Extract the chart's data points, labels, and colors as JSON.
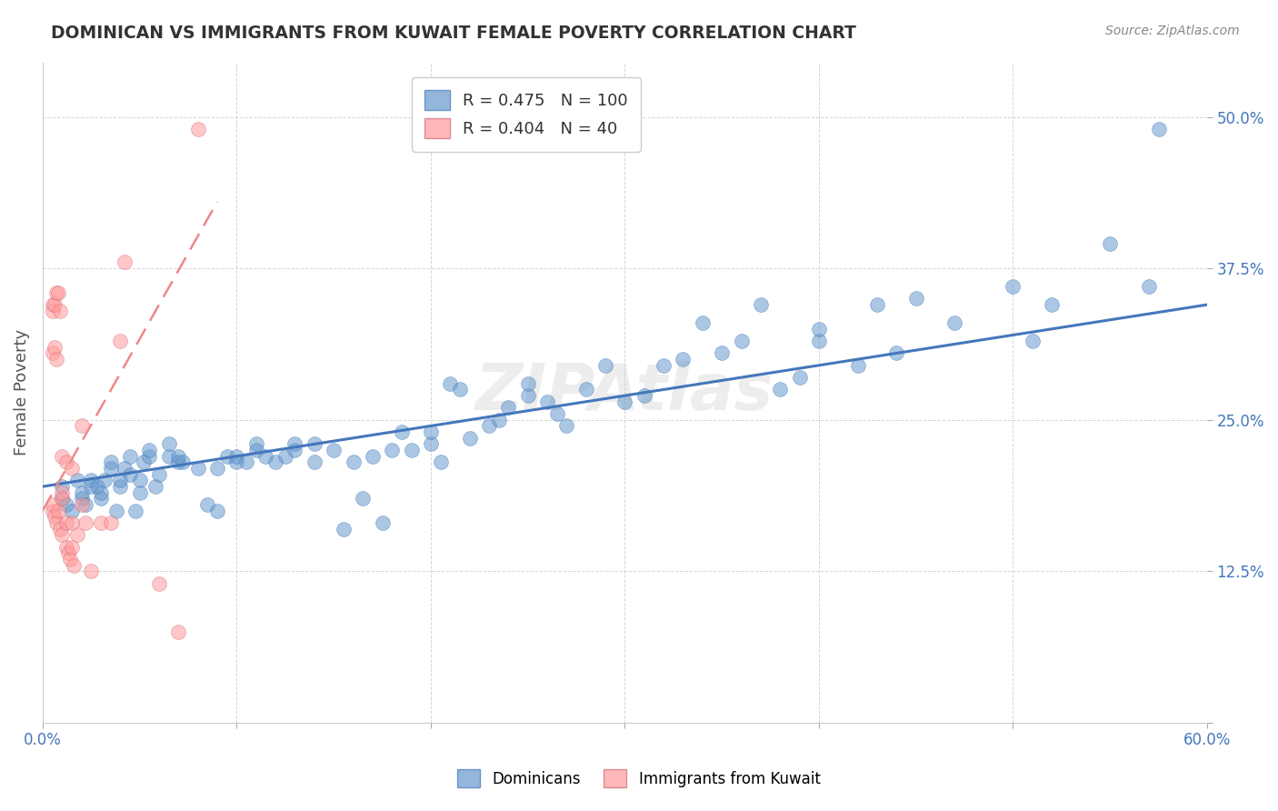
{
  "title": "DOMINICAN VS IMMIGRANTS FROM KUWAIT FEMALE POVERTY CORRELATION CHART",
  "source": "Source: ZipAtlas.com",
  "ylabel": "Female Poverty",
  "xlim": [
    0.0,
    0.6
  ],
  "ylim": [
    0.0,
    0.545
  ],
  "legend_blue_r": "0.475",
  "legend_blue_n": "100",
  "legend_pink_r": "0.404",
  "legend_pink_n": "40",
  "blue_color": "#6699CC",
  "pink_color": "#FF9999",
  "trendline_blue": "#4477BB",
  "trendline_pink": "#EE8888",
  "title_color": "#333333",
  "axis_label_color": "#4477BB",
  "watermark": "ZIPAtlas",
  "blue_scatter": [
    [
      0.01,
      0.185
    ],
    [
      0.01,
      0.195
    ],
    [
      0.012,
      0.18
    ],
    [
      0.015,
      0.175
    ],
    [
      0.018,
      0.2
    ],
    [
      0.02,
      0.185
    ],
    [
      0.02,
      0.19
    ],
    [
      0.022,
      0.18
    ],
    [
      0.025,
      0.195
    ],
    [
      0.025,
      0.2
    ],
    [
      0.028,
      0.195
    ],
    [
      0.03,
      0.185
    ],
    [
      0.03,
      0.19
    ],
    [
      0.032,
      0.2
    ],
    [
      0.035,
      0.21
    ],
    [
      0.035,
      0.215
    ],
    [
      0.038,
      0.175
    ],
    [
      0.04,
      0.195
    ],
    [
      0.04,
      0.2
    ],
    [
      0.042,
      0.21
    ],
    [
      0.045,
      0.205
    ],
    [
      0.045,
      0.22
    ],
    [
      0.048,
      0.175
    ],
    [
      0.05,
      0.19
    ],
    [
      0.05,
      0.2
    ],
    [
      0.052,
      0.215
    ],
    [
      0.055,
      0.22
    ],
    [
      0.055,
      0.225
    ],
    [
      0.058,
      0.195
    ],
    [
      0.06,
      0.205
    ],
    [
      0.065,
      0.22
    ],
    [
      0.065,
      0.23
    ],
    [
      0.07,
      0.215
    ],
    [
      0.07,
      0.22
    ],
    [
      0.072,
      0.215
    ],
    [
      0.08,
      0.21
    ],
    [
      0.085,
      0.18
    ],
    [
      0.09,
      0.175
    ],
    [
      0.09,
      0.21
    ],
    [
      0.095,
      0.22
    ],
    [
      0.1,
      0.215
    ],
    [
      0.1,
      0.22
    ],
    [
      0.105,
      0.215
    ],
    [
      0.11,
      0.225
    ],
    [
      0.11,
      0.23
    ],
    [
      0.115,
      0.22
    ],
    [
      0.12,
      0.215
    ],
    [
      0.125,
      0.22
    ],
    [
      0.13,
      0.225
    ],
    [
      0.13,
      0.23
    ],
    [
      0.14,
      0.215
    ],
    [
      0.14,
      0.23
    ],
    [
      0.15,
      0.225
    ],
    [
      0.155,
      0.16
    ],
    [
      0.16,
      0.215
    ],
    [
      0.165,
      0.185
    ],
    [
      0.17,
      0.22
    ],
    [
      0.175,
      0.165
    ],
    [
      0.18,
      0.225
    ],
    [
      0.185,
      0.24
    ],
    [
      0.19,
      0.225
    ],
    [
      0.2,
      0.23
    ],
    [
      0.2,
      0.24
    ],
    [
      0.205,
      0.215
    ],
    [
      0.21,
      0.28
    ],
    [
      0.215,
      0.275
    ],
    [
      0.22,
      0.235
    ],
    [
      0.23,
      0.245
    ],
    [
      0.235,
      0.25
    ],
    [
      0.24,
      0.26
    ],
    [
      0.25,
      0.27
    ],
    [
      0.25,
      0.28
    ],
    [
      0.26,
      0.265
    ],
    [
      0.265,
      0.255
    ],
    [
      0.27,
      0.245
    ],
    [
      0.28,
      0.275
    ],
    [
      0.29,
      0.295
    ],
    [
      0.3,
      0.265
    ],
    [
      0.31,
      0.27
    ],
    [
      0.32,
      0.295
    ],
    [
      0.33,
      0.3
    ],
    [
      0.34,
      0.33
    ],
    [
      0.35,
      0.305
    ],
    [
      0.36,
      0.315
    ],
    [
      0.37,
      0.345
    ],
    [
      0.38,
      0.275
    ],
    [
      0.39,
      0.285
    ],
    [
      0.4,
      0.315
    ],
    [
      0.4,
      0.325
    ],
    [
      0.42,
      0.295
    ],
    [
      0.43,
      0.345
    ],
    [
      0.44,
      0.305
    ],
    [
      0.45,
      0.35
    ],
    [
      0.47,
      0.33
    ],
    [
      0.5,
      0.36
    ],
    [
      0.51,
      0.315
    ],
    [
      0.52,
      0.345
    ],
    [
      0.55,
      0.395
    ],
    [
      0.57,
      0.36
    ],
    [
      0.575,
      0.49
    ]
  ],
  "pink_scatter": [
    [
      0.005,
      0.175
    ],
    [
      0.005,
      0.18
    ],
    [
      0.006,
      0.17
    ],
    [
      0.007,
      0.165
    ],
    [
      0.008,
      0.175
    ],
    [
      0.009,
      0.16
    ],
    [
      0.01,
      0.185
    ],
    [
      0.01,
      0.19
    ],
    [
      0.01,
      0.155
    ],
    [
      0.012,
      0.145
    ],
    [
      0.012,
      0.165
    ],
    [
      0.013,
      0.14
    ],
    [
      0.014,
      0.135
    ],
    [
      0.015,
      0.145
    ],
    [
      0.015,
      0.165
    ],
    [
      0.016,
      0.13
    ],
    [
      0.018,
      0.155
    ],
    [
      0.02,
      0.245
    ],
    [
      0.022,
      0.165
    ],
    [
      0.025,
      0.125
    ],
    [
      0.03,
      0.165
    ],
    [
      0.035,
      0.165
    ],
    [
      0.04,
      0.315
    ],
    [
      0.042,
      0.38
    ],
    [
      0.06,
      0.115
    ],
    [
      0.07,
      0.075
    ],
    [
      0.08,
      0.49
    ],
    [
      0.005,
      0.345
    ],
    [
      0.005,
      0.34
    ],
    [
      0.006,
      0.345
    ],
    [
      0.007,
      0.355
    ],
    [
      0.008,
      0.355
    ],
    [
      0.009,
      0.34
    ],
    [
      0.005,
      0.305
    ],
    [
      0.006,
      0.31
    ],
    [
      0.007,
      0.3
    ],
    [
      0.01,
      0.22
    ],
    [
      0.012,
      0.215
    ],
    [
      0.015,
      0.21
    ],
    [
      0.02,
      0.18
    ]
  ],
  "blue_trend_x": [
    0.0,
    0.6
  ],
  "blue_trend_y": [
    0.195,
    0.345
  ],
  "pink_trend_x": [
    0.0,
    0.09
  ],
  "pink_trend_y": [
    0.175,
    0.43
  ]
}
